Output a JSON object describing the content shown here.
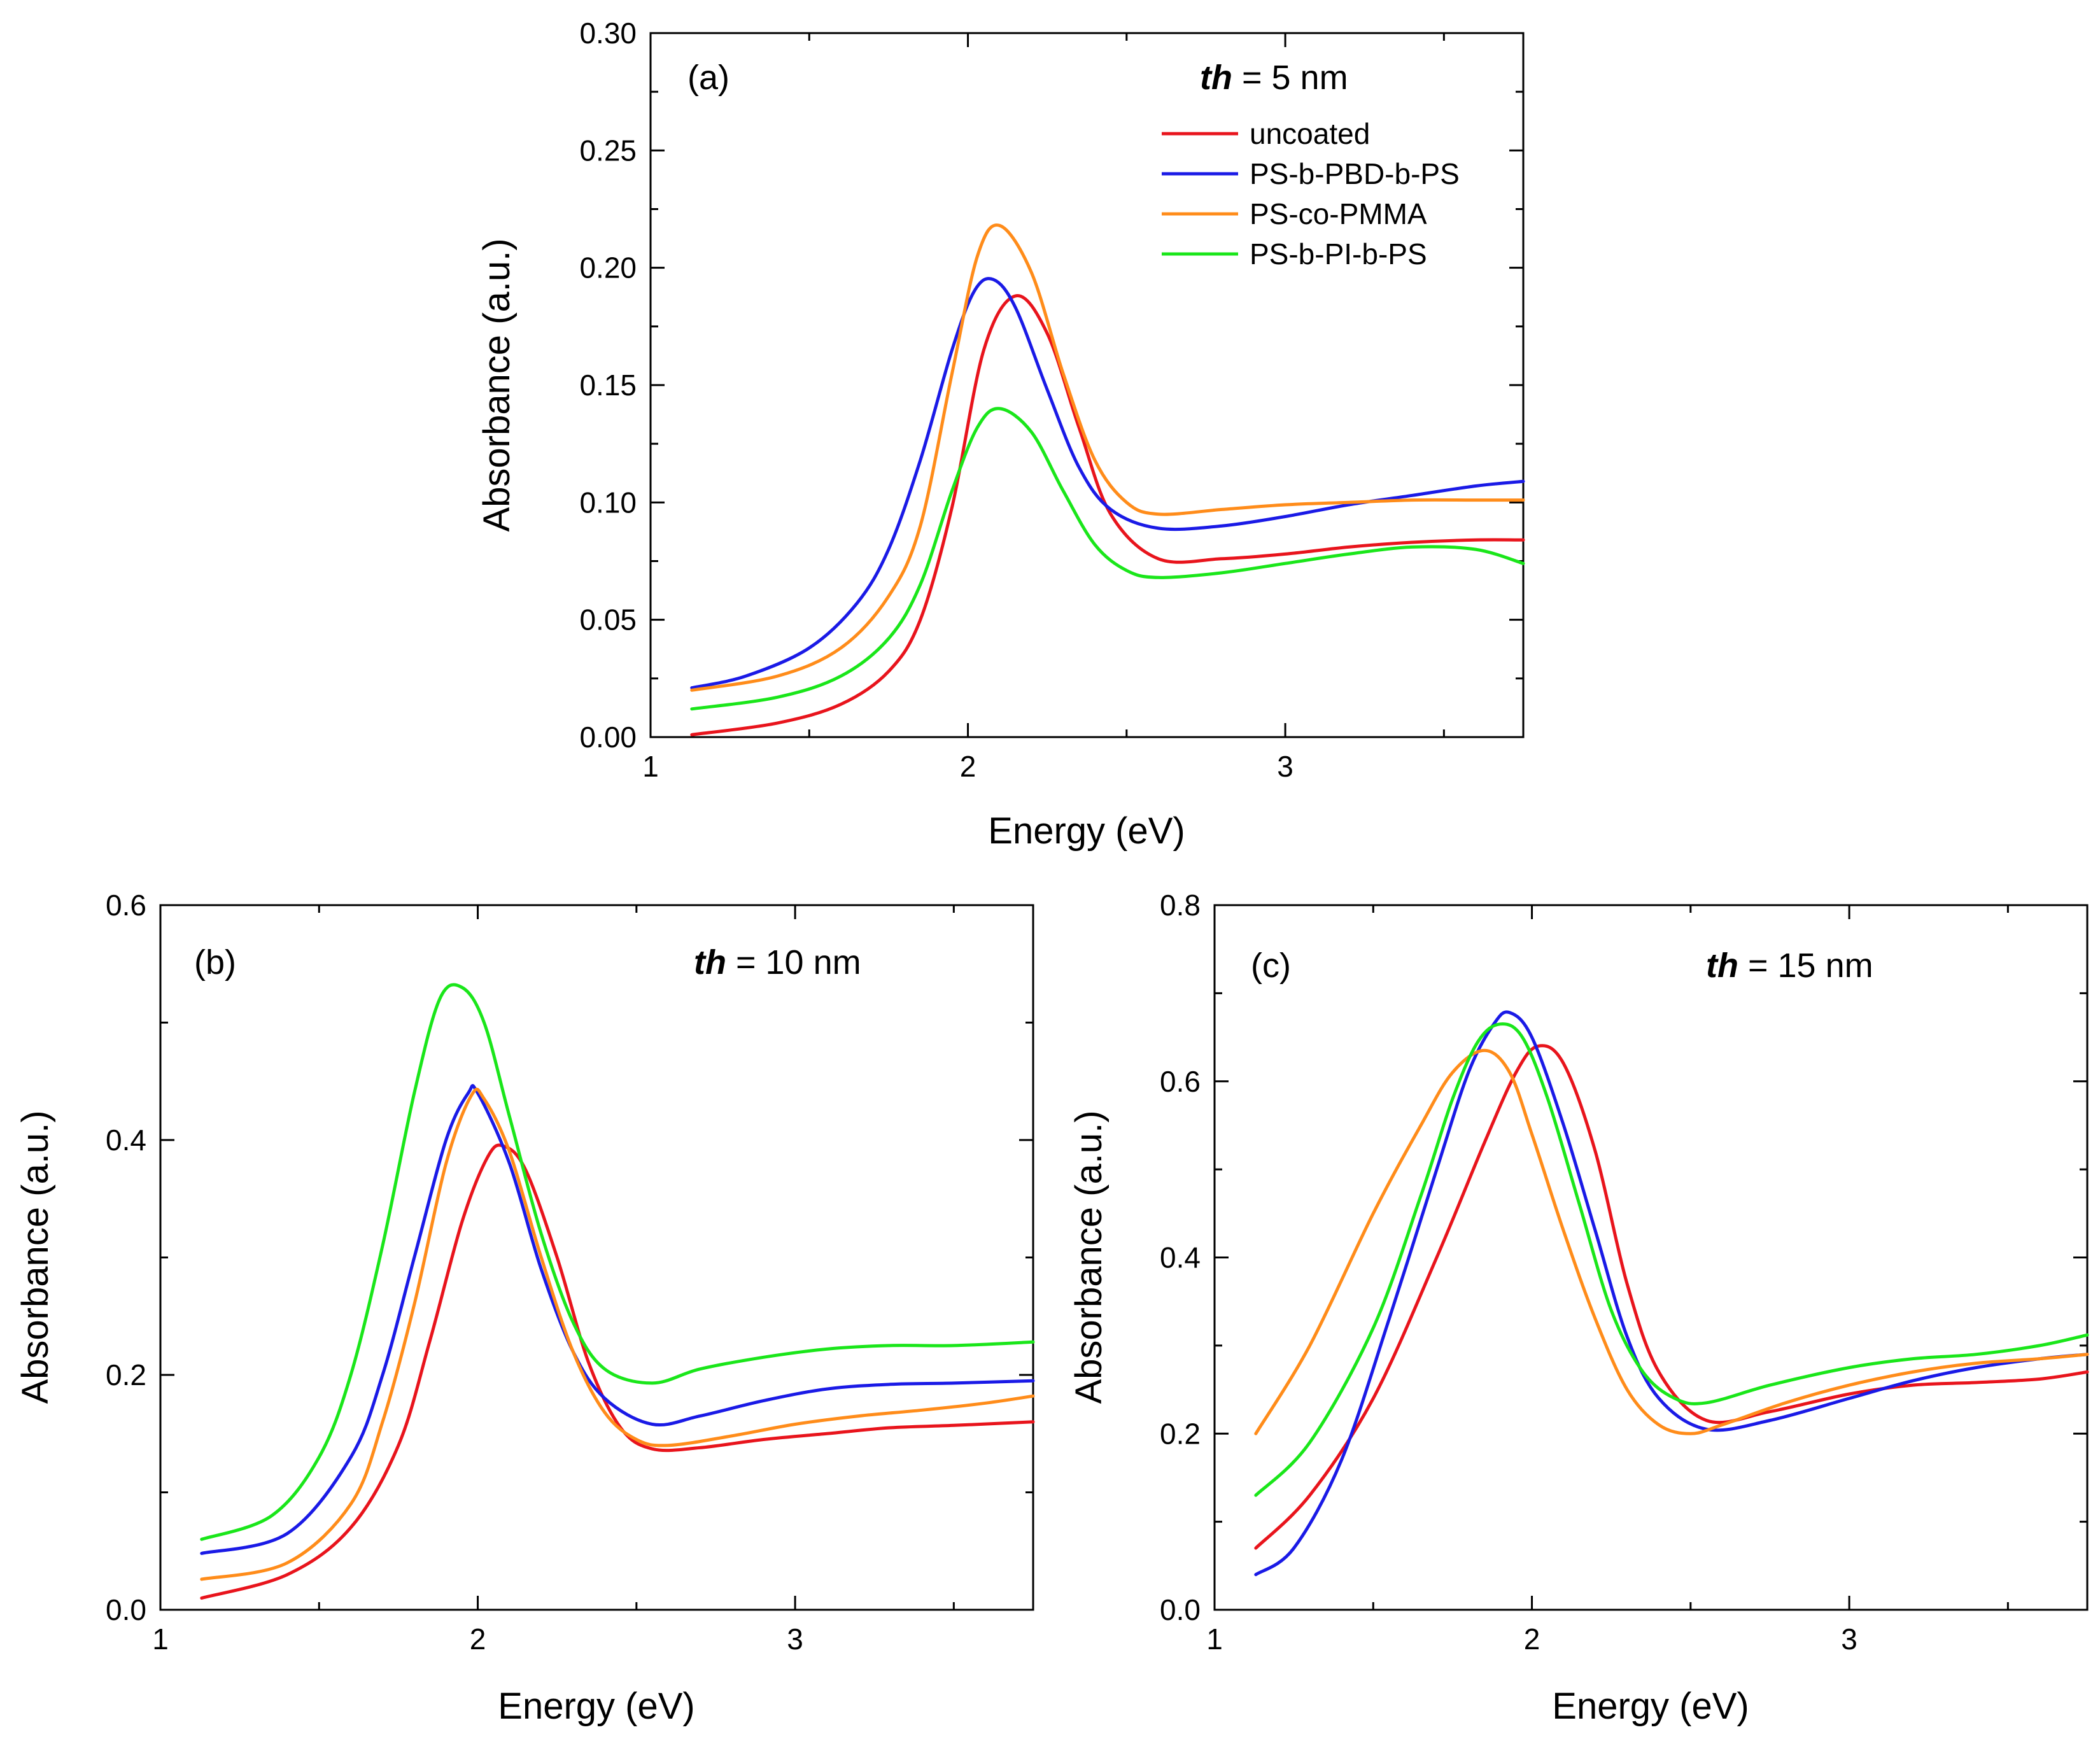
{
  "chart_data": [
    {
      "type": "line",
      "panel_label": "(a)",
      "annotation_prefix": "th",
      "annotation_suffix": " = 5 nm",
      "xlabel": "Energy (eV)",
      "ylabel": "Absorbance (a.u.)",
      "xlim": [
        1,
        3.75
      ],
      "ylim": [
        0,
        0.3
      ],
      "xticks": [
        1,
        2,
        3
      ],
      "xtick_labels": [
        "1",
        "2",
        "3"
      ],
      "yticks": [
        0,
        0.05,
        0.1,
        0.15,
        0.2,
        0.25,
        0.3
      ],
      "ytick_labels": [
        "0.00",
        "0.05",
        "0.10",
        "0.15",
        "0.20",
        "0.25",
        "0.30"
      ],
      "legend": true,
      "legend_position": "top-right",
      "series": [
        {
          "name": "uncoated",
          "color": "#e8141c",
          "x": [
            1.13,
            1.4,
            1.6,
            1.75,
            1.85,
            1.95,
            2.05,
            2.15,
            2.25,
            2.35,
            2.45,
            2.6,
            2.8,
            3.0,
            3.2,
            3.4,
            3.6,
            3.75
          ],
          "y": [
            0.001,
            0.006,
            0.014,
            0.028,
            0.05,
            0.098,
            0.165,
            0.188,
            0.172,
            0.132,
            0.095,
            0.076,
            0.076,
            0.078,
            0.081,
            0.083,
            0.084,
            0.084
          ]
        },
        {
          "name": "PS-b-PBD-b-PS",
          "color": "#1a1ae6",
          "x": [
            1.13,
            1.3,
            1.5,
            1.65,
            1.75,
            1.85,
            1.95,
            2.02,
            2.08,
            2.15,
            2.25,
            2.35,
            2.45,
            2.6,
            2.8,
            3.0,
            3.2,
            3.4,
            3.6,
            3.75
          ],
          "y": [
            0.021,
            0.026,
            0.038,
            0.057,
            0.08,
            0.118,
            0.165,
            0.19,
            0.195,
            0.183,
            0.148,
            0.115,
            0.097,
            0.089,
            0.09,
            0.094,
            0.099,
            0.103,
            0.107,
            0.109
          ]
        },
        {
          "name": "PS-co-PMMA",
          "color": "#ff8c1a",
          "x": [
            1.13,
            1.4,
            1.6,
            1.75,
            1.85,
            1.95,
            2.03,
            2.1,
            2.2,
            2.3,
            2.4,
            2.5,
            2.6,
            2.8,
            3.0,
            3.2,
            3.4,
            3.6,
            3.75
          ],
          "y": [
            0.02,
            0.026,
            0.038,
            0.06,
            0.09,
            0.155,
            0.205,
            0.218,
            0.198,
            0.155,
            0.118,
            0.1,
            0.095,
            0.097,
            0.099,
            0.1,
            0.101,
            0.101,
            0.101
          ]
        },
        {
          "name": "PS-b-PI-b-PS",
          "color": "#1ae61a",
          "x": [
            1.13,
            1.4,
            1.6,
            1.75,
            1.85,
            1.95,
            2.03,
            2.1,
            2.2,
            2.3,
            2.4,
            2.5,
            2.6,
            2.8,
            3.0,
            3.2,
            3.4,
            3.6,
            3.75
          ],
          "y": [
            0.012,
            0.017,
            0.026,
            0.042,
            0.065,
            0.105,
            0.132,
            0.14,
            0.13,
            0.105,
            0.082,
            0.071,
            0.068,
            0.07,
            0.074,
            0.078,
            0.081,
            0.08,
            0.074
          ]
        }
      ]
    },
    {
      "type": "line",
      "panel_label": "(b)",
      "annotation_prefix": "th",
      "annotation_suffix": " = 10 nm",
      "xlabel": "Energy (eV)",
      "ylabel": "Absorbance (a.u.)",
      "xlim": [
        1,
        3.75
      ],
      "ylim": [
        0,
        0.6
      ],
      "xticks": [
        1,
        2,
        3
      ],
      "xtick_labels": [
        "1",
        "2",
        "3"
      ],
      "yticks": [
        0,
        0.2,
        0.4,
        0.6
      ],
      "ytick_labels": [
        "0.0",
        "0.2",
        "0.4",
        "0.6"
      ],
      "legend": false,
      "series": [
        {
          "name": "uncoated",
          "color": "#e8141c",
          "x": [
            1.13,
            1.4,
            1.6,
            1.75,
            1.85,
            1.95,
            2.03,
            2.08,
            2.15,
            2.25,
            2.35,
            2.45,
            2.55,
            2.7,
            2.9,
            3.1,
            3.3,
            3.5,
            3.75
          ],
          "y": [
            0.01,
            0.03,
            0.07,
            0.14,
            0.23,
            0.33,
            0.385,
            0.395,
            0.375,
            0.3,
            0.21,
            0.155,
            0.137,
            0.138,
            0.145,
            0.15,
            0.155,
            0.157,
            0.16
          ]
        },
        {
          "name": "PS-b-PBD-b-PS",
          "color": "#1a1ae6",
          "x": [
            1.13,
            1.4,
            1.6,
            1.7,
            1.8,
            1.9,
            1.97,
            2.0,
            2.1,
            2.2,
            2.3,
            2.4,
            2.55,
            2.7,
            2.9,
            3.1,
            3.3,
            3.5,
            3.75
          ],
          "y": [
            0.048,
            0.065,
            0.13,
            0.2,
            0.3,
            0.4,
            0.44,
            0.44,
            0.38,
            0.29,
            0.22,
            0.18,
            0.158,
            0.165,
            0.178,
            0.188,
            0.192,
            0.193,
            0.195
          ]
        },
        {
          "name": "PS-co-PMMA",
          "color": "#ff8c1a",
          "x": [
            1.13,
            1.4,
            1.6,
            1.7,
            1.8,
            1.9,
            1.98,
            2.02,
            2.1,
            2.2,
            2.3,
            2.4,
            2.5,
            2.6,
            2.8,
            3.0,
            3.2,
            3.4,
            3.6,
            3.75
          ],
          "y": [
            0.026,
            0.04,
            0.09,
            0.16,
            0.26,
            0.38,
            0.438,
            0.435,
            0.39,
            0.3,
            0.22,
            0.168,
            0.145,
            0.14,
            0.148,
            0.158,
            0.165,
            0.17,
            0.176,
            0.182
          ]
        },
        {
          "name": "PS-b-PI-b-PS",
          "color": "#1ae61a",
          "x": [
            1.13,
            1.35,
            1.5,
            1.6,
            1.7,
            1.8,
            1.88,
            1.95,
            2.02,
            2.1,
            2.2,
            2.3,
            2.4,
            2.55,
            2.7,
            2.9,
            3.1,
            3.3,
            3.5,
            3.75
          ],
          "y": [
            0.06,
            0.08,
            0.13,
            0.2,
            0.31,
            0.44,
            0.52,
            0.53,
            0.5,
            0.42,
            0.32,
            0.245,
            0.205,
            0.193,
            0.205,
            0.215,
            0.222,
            0.225,
            0.225,
            0.228
          ]
        }
      ]
    },
    {
      "type": "line",
      "panel_label": "(c)",
      "annotation_prefix": "th",
      "annotation_suffix": " = 15 nm",
      "xlabel": "Energy (eV)",
      "ylabel": "Absorbance (a.u.)",
      "xlim": [
        1,
        3.75
      ],
      "ylim": [
        0,
        0.8
      ],
      "xticks": [
        1,
        2,
        3
      ],
      "xtick_labels": [
        "1",
        "2",
        "3"
      ],
      "yticks": [
        0,
        0.2,
        0.4,
        0.6,
        0.8
      ],
      "ytick_labels": [
        "0.0",
        "0.2",
        "0.4",
        "0.6",
        "0.8"
      ],
      "legend": false,
      "series": [
        {
          "name": "uncoated",
          "color": "#e8141c",
          "x": [
            1.13,
            1.3,
            1.5,
            1.7,
            1.85,
            1.95,
            2.02,
            2.1,
            2.2,
            2.3,
            2.4,
            2.55,
            2.75,
            3.0,
            3.2,
            3.4,
            3.6,
            3.75
          ],
          "y": [
            0.07,
            0.13,
            0.24,
            0.4,
            0.53,
            0.61,
            0.64,
            0.62,
            0.52,
            0.37,
            0.27,
            0.215,
            0.225,
            0.245,
            0.255,
            0.258,
            0.262,
            0.27
          ]
        },
        {
          "name": "PS-b-PBD-b-PS",
          "color": "#1a1ae6",
          "x": [
            1.13,
            1.25,
            1.4,
            1.55,
            1.7,
            1.8,
            1.88,
            1.93,
            2.0,
            2.1,
            2.2,
            2.3,
            2.4,
            2.55,
            2.75,
            3.0,
            3.2,
            3.4,
            3.6,
            3.75
          ],
          "y": [
            0.04,
            0.07,
            0.17,
            0.33,
            0.5,
            0.61,
            0.665,
            0.678,
            0.65,
            0.55,
            0.43,
            0.31,
            0.24,
            0.205,
            0.215,
            0.24,
            0.26,
            0.275,
            0.285,
            0.29
          ]
        },
        {
          "name": "PS-co-PMMA",
          "color": "#ff8c1a",
          "x": [
            1.13,
            1.3,
            1.5,
            1.65,
            1.75,
            1.85,
            1.93,
            2.0,
            2.1,
            2.2,
            2.3,
            2.4,
            2.5,
            2.6,
            2.8,
            3.0,
            3.2,
            3.4,
            3.6,
            3.75
          ],
          "y": [
            0.2,
            0.3,
            0.45,
            0.55,
            0.61,
            0.635,
            0.61,
            0.54,
            0.43,
            0.33,
            0.25,
            0.21,
            0.2,
            0.21,
            0.235,
            0.255,
            0.27,
            0.28,
            0.285,
            0.29
          ]
        },
        {
          "name": "PS-b-PI-b-PS",
          "color": "#1ae61a",
          "x": [
            1.13,
            1.3,
            1.5,
            1.65,
            1.75,
            1.83,
            1.9,
            1.97,
            2.05,
            2.15,
            2.25,
            2.35,
            2.45,
            2.55,
            2.75,
            3.0,
            3.2,
            3.4,
            3.6,
            3.75
          ],
          "y": [
            0.13,
            0.19,
            0.32,
            0.47,
            0.58,
            0.645,
            0.665,
            0.65,
            0.58,
            0.46,
            0.34,
            0.27,
            0.24,
            0.235,
            0.255,
            0.275,
            0.285,
            0.29,
            0.3,
            0.312
          ]
        }
      ]
    }
  ]
}
